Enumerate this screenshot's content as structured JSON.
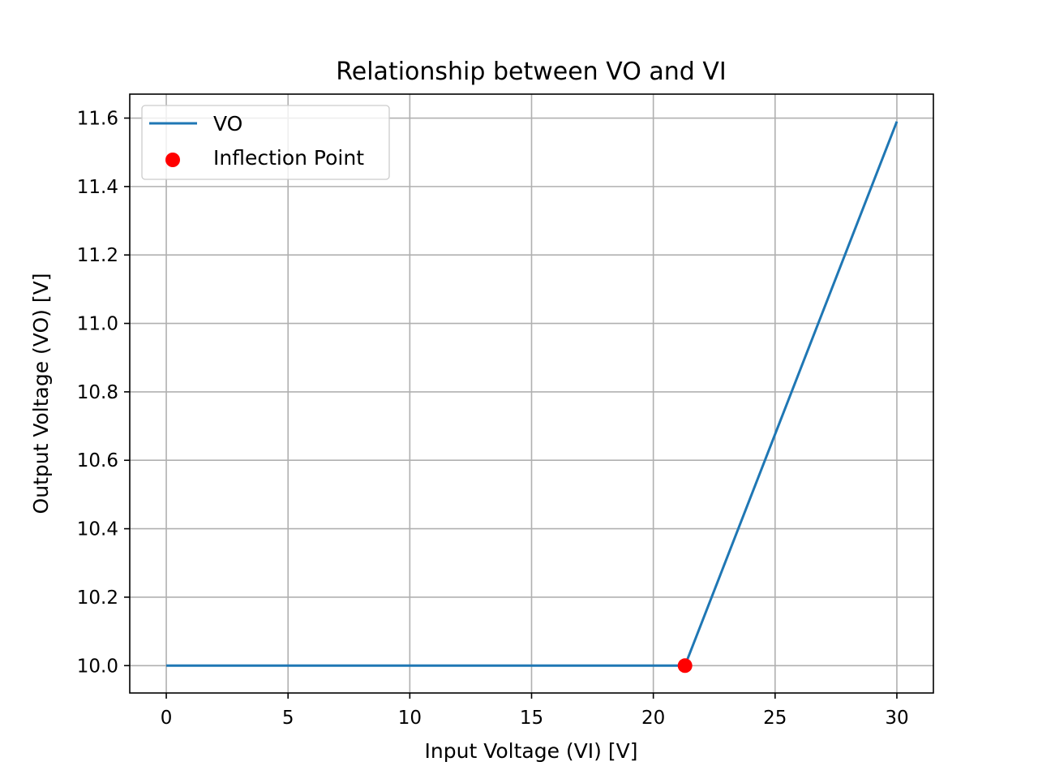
{
  "chart_data": {
    "type": "line",
    "title": "Relationship between VO and VI",
    "xlabel": "Input Voltage (VI) [V]",
    "ylabel": "Output Voltage (VO) [V]",
    "xlim": [
      -1.5,
      31.5
    ],
    "ylim": [
      9.92,
      11.67
    ],
    "x_ticks": [
      0,
      5,
      10,
      15,
      20,
      25,
      30
    ],
    "y_ticks": [
      10.0,
      10.2,
      10.4,
      10.6,
      10.8,
      11.0,
      11.2,
      11.4,
      11.6
    ],
    "x_tick_labels": [
      "0",
      "5",
      "10",
      "15",
      "20",
      "25",
      "30"
    ],
    "y_tick_labels": [
      "10.0",
      "10.2",
      "10.4",
      "10.6",
      "10.8",
      "11.0",
      "11.2",
      "11.4",
      "11.6"
    ],
    "grid": true,
    "legend_position": "top-left",
    "series": [
      {
        "name": "VO",
        "kind": "line",
        "color": "#1f77b4",
        "x": [
          0,
          21.3,
          30
        ],
        "y": [
          10.0,
          10.0,
          11.59
        ]
      },
      {
        "name": "Inflection Point",
        "kind": "scatter",
        "color": "#ff0000",
        "x": [
          21.3
        ],
        "y": [
          10.0
        ]
      }
    ]
  }
}
